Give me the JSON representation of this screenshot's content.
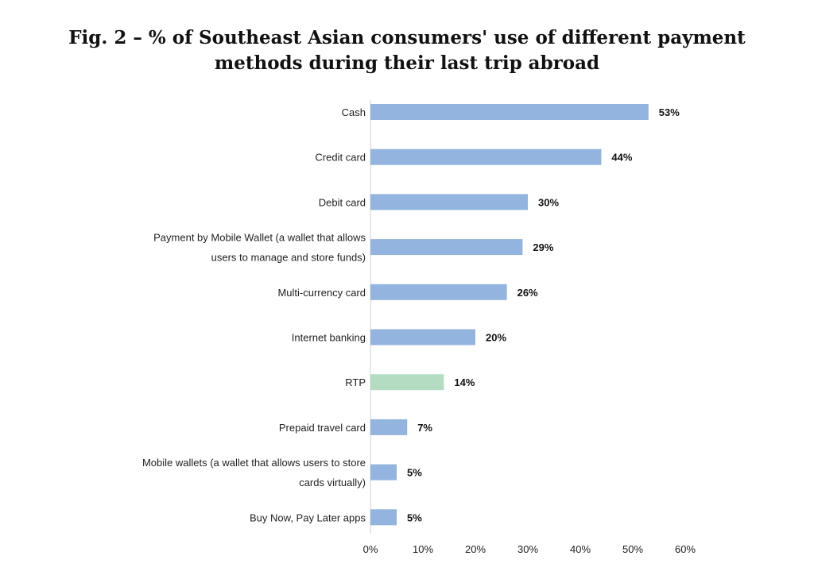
{
  "chart_data": {
    "type": "bar",
    "orientation": "horizontal",
    "title": "Fig. 2 – % of Southeast Asian consumers' use of different payment methods during their last trip abroad",
    "title_lines": [
      "Fig. 2 – % of Southeast Asian consumers' use of different payment",
      "methods during their last trip abroad"
    ],
    "categories": [
      "Cash",
      "Credit card",
      "Debit card",
      "Payment by Mobile Wallet (a wallet that allows users to manage and store funds)",
      "Multi-currency card",
      "Internet banking",
      "RTP",
      "Prepaid travel card",
      "Mobile wallets (a wallet that allows users to store cards virtually)",
      "Buy Now, Pay Later apps"
    ],
    "category_lines": [
      [
        "Cash"
      ],
      [
        "Credit card"
      ],
      [
        "Debit card"
      ],
      [
        "Payment by Mobile Wallet (a wallet that allows",
        "users to manage and store funds)"
      ],
      [
        "Multi-currency card"
      ],
      [
        "Internet banking"
      ],
      [
        "RTP"
      ],
      [
        "Prepaid travel card"
      ],
      [
        "Mobile wallets (a wallet that allows users to store",
        "cards virtually)"
      ],
      [
        "Buy Now, Pay Later apps"
      ]
    ],
    "values": [
      53,
      44,
      30,
      29,
      26,
      20,
      14,
      7,
      5,
      5
    ],
    "value_labels": [
      "53%",
      "44%",
      "30%",
      "29%",
      "26%",
      "20%",
      "14%",
      "7%",
      "5%",
      "5%"
    ],
    "bar_colors": [
      "#92b4de",
      "#92b4de",
      "#92b4de",
      "#92b4de",
      "#92b4de",
      "#92b4de",
      "#b3dcc3",
      "#92b4de",
      "#92b4de",
      "#92b4de"
    ],
    "xlim": [
      0,
      60
    ],
    "x_ticks": [
      0,
      10,
      20,
      30,
      40,
      50,
      60
    ],
    "x_tick_labels": [
      "0%",
      "10%",
      "20%",
      "30%",
      "40%",
      "50%",
      "60%"
    ],
    "grid": false
  }
}
